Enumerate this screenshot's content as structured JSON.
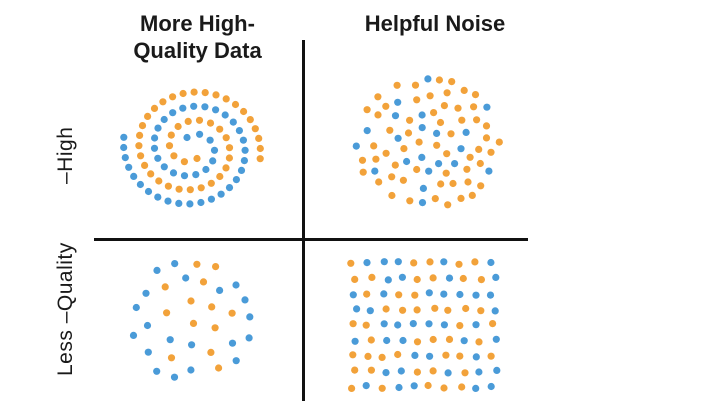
{
  "quadrants": {
    "top_left_title": "More High-\nQuality Data",
    "top_right_title": "Helpful Noise"
  },
  "y_axis": {
    "upper_label": "–High",
    "lower_label": "Less –Quality"
  },
  "colors": {
    "blue": "#4a9bd8",
    "orange": "#f2a23a",
    "axis": "#111111",
    "text": "#1a1a1a"
  },
  "panels": [
    {
      "name": "spiral-pattern",
      "description_shown": "two interleaved spiral arms of blue and orange dots"
    },
    {
      "name": "helpful-noise-cloud",
      "description_shown": "circular cloud of scattered blue and orange dots"
    },
    {
      "name": "sparse-mixed-dots",
      "description_shown": "sparse irregular scatter of blue and orange dots"
    },
    {
      "name": "grid-mixed-dots",
      "description_shown": "dense square grid of blue and orange dots"
    }
  ]
}
